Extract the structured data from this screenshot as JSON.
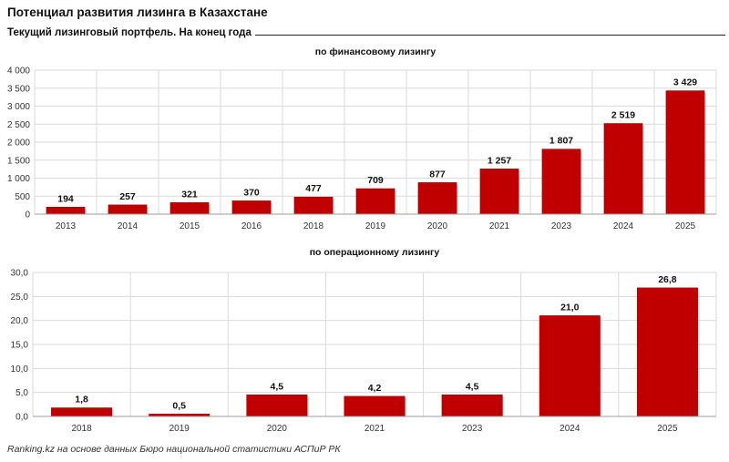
{
  "header": {
    "title": "Потенциал развития лизинга в Казахстане",
    "subtitle": "Текущий лизинговый портфель. На конец года"
  },
  "footer": {
    "source": "Ranking.kz на основе данных Бюро национальной статистики АСПиР РК"
  },
  "colors": {
    "bar": "#c00000",
    "bar_edge": "#8b0000",
    "grid": "#d9d9d9"
  },
  "chart_data": [
    {
      "type": "bar",
      "title": "по финансовому лизингу",
      "categories": [
        "2013",
        "2014",
        "2015",
        "2016",
        "2018",
        "2019",
        "2020",
        "2021",
        "2023",
        "2024",
        "2025"
      ],
      "values": [
        194,
        257,
        321,
        370,
        477,
        709,
        877,
        1257,
        1807,
        2519,
        3429
      ],
      "value_labels": [
        "194",
        "257",
        "321",
        "370",
        "477",
        "709",
        "877",
        "1 257",
        "1 807",
        "2 519",
        "3 429"
      ],
      "ylim": [
        0,
        4000
      ],
      "yticks": [
        0,
        500,
        1000,
        1500,
        2000,
        2500,
        3000,
        3500,
        4000
      ],
      "ytick_labels": [
        "0",
        "500",
        "1 000",
        "1 500",
        "2 000",
        "2 500",
        "3 000",
        "3 500",
        "4 000"
      ],
      "grid": true
    },
    {
      "type": "bar",
      "title": "по операционному лизингу",
      "categories": [
        "2018",
        "2019",
        "2020",
        "2021",
        "2023",
        "2024",
        "2025"
      ],
      "values": [
        1.8,
        0.5,
        4.5,
        4.2,
        4.5,
        21.0,
        26.8
      ],
      "value_labels": [
        "1,8",
        "0,5",
        "4,5",
        "4,2",
        "4,5",
        "21,0",
        "26,8"
      ],
      "ylim": [
        0,
        30
      ],
      "yticks": [
        0,
        5,
        10,
        15,
        20,
        25,
        30
      ],
      "ytick_labels": [
        "0,0",
        "5,0",
        "10,0",
        "15,0",
        "20,0",
        "25,0",
        "30,0"
      ],
      "grid": true
    }
  ]
}
